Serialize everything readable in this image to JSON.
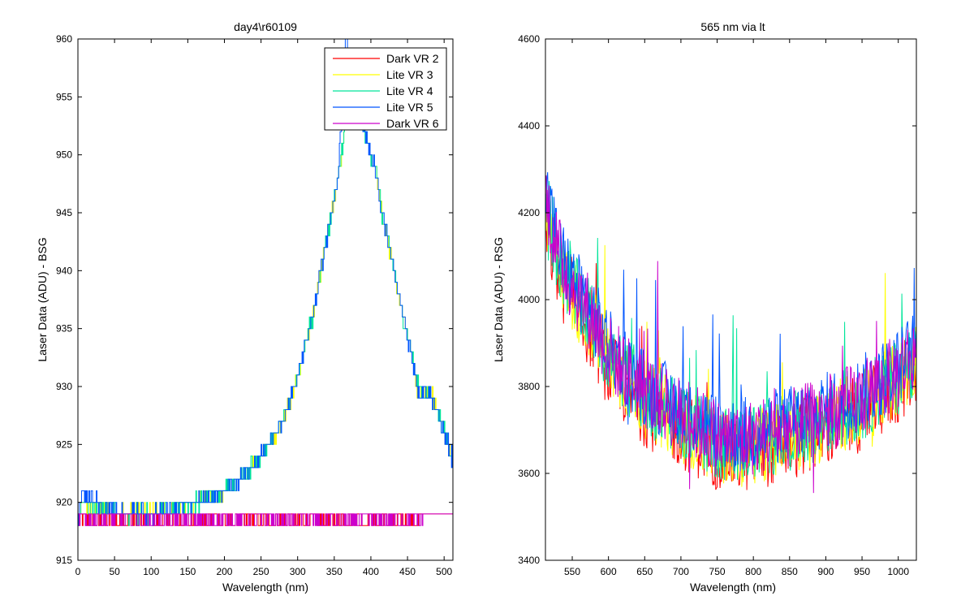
{
  "chart_data": [
    {
      "type": "line",
      "title": "day4\\r60109",
      "xlabel": "Wavelength (nm)",
      "ylabel": "Laser Data (ADU) - BSG",
      "xlim": [
        0,
        512
      ],
      "ylim": [
        915,
        960
      ],
      "xticks": [
        0,
        50,
        100,
        150,
        200,
        250,
        300,
        350,
        400,
        450,
        500
      ],
      "yticks": [
        915,
        920,
        925,
        930,
        935,
        940,
        945,
        950,
        955,
        960
      ],
      "legend_position": "top-right",
      "grid": false,
      "series": [
        {
          "name": "Dark VR 2",
          "color": "#ff0000",
          "shape": "baseline",
          "x": [
            0,
            5,
            20,
            100,
            200,
            300,
            400,
            450,
            470,
            512
          ],
          "y": [
            918.5,
            918.5,
            918.5,
            918.5,
            918.5,
            918.5,
            918.5,
            918.5,
            919,
            919
          ]
        },
        {
          "name": "Lite VR 3",
          "color": "#ffff00",
          "shape": "peak",
          "x": [
            0,
            5,
            50,
            100,
            130,
            160,
            190,
            220,
            250,
            280,
            300,
            320,
            340,
            355,
            365,
            375,
            385,
            395,
            405,
            415,
            425,
            440,
            455,
            463,
            485,
            500,
            510
          ],
          "y": [
            918.5,
            920,
            919,
            919,
            919.5,
            920,
            920.5,
            922,
            924,
            927,
            931,
            936,
            943,
            948,
            953,
            955,
            954,
            951,
            949,
            945,
            942,
            937,
            933,
            930,
            929,
            926,
            924
          ]
        },
        {
          "name": "Lite VR 4",
          "color": "#00e59a",
          "shape": "peak",
          "x": [
            0,
            5,
            50,
            100,
            130,
            160,
            190,
            220,
            250,
            280,
            300,
            320,
            340,
            355,
            365,
            375,
            385,
            395,
            405,
            415,
            425,
            440,
            455,
            463,
            485,
            500,
            510
          ],
          "y": [
            918.5,
            920,
            919,
            919,
            919.5,
            920,
            920.5,
            922,
            924,
            927,
            931,
            936,
            943,
            948,
            953,
            955,
            954,
            951,
            949,
            945,
            942,
            937,
            933,
            930,
            929,
            926,
            924
          ]
        },
        {
          "name": "Lite VR 5",
          "color": "#0055ff",
          "shape": "peak",
          "x": [
            0,
            5,
            50,
            100,
            130,
            160,
            190,
            220,
            250,
            280,
            300,
            320,
            340,
            355,
            365,
            375,
            385,
            395,
            405,
            415,
            425,
            440,
            455,
            463,
            485,
            500,
            510
          ],
          "y": [
            918.5,
            921,
            919,
            919,
            919.5,
            920,
            920.5,
            922,
            924,
            927,
            931,
            936,
            943,
            948,
            960,
            955,
            954,
            951,
            949,
            945,
            942,
            937,
            933,
            930,
            929,
            926,
            924
          ]
        },
        {
          "name": "Dark VR 6",
          "color": "#cc00cc",
          "shape": "baseline",
          "x": [
            0,
            5,
            20,
            100,
            200,
            300,
            400,
            450,
            470,
            512
          ],
          "y": [
            917,
            918.5,
            918.5,
            918.5,
            918.5,
            918.5,
            918.5,
            918.5,
            919,
            919
          ]
        }
      ]
    },
    {
      "type": "line",
      "title": "565 nm via lt",
      "xlabel": "Wavelength (nm)",
      "ylabel": "Laser Data (ADU) - RSG",
      "xlim": [
        513,
        1025
      ],
      "ylim": [
        3400,
        4600
      ],
      "xticks": [
        550,
        600,
        650,
        700,
        750,
        800,
        850,
        900,
        950,
        1000
      ],
      "yticks": [
        3400,
        3600,
        3800,
        4000,
        4200,
        4400,
        4600
      ],
      "grid": false,
      "series": [
        {
          "color": "#ff0000",
          "x": [
            513,
            530,
            550,
            575,
            600,
            650,
            700,
            750,
            780,
            800,
            850,
            900,
            950,
            1000,
            1025
          ],
          "y": [
            4180,
            4060,
            3990,
            3930,
            3840,
            3750,
            3700,
            3650,
            3640,
            3650,
            3670,
            3700,
            3740,
            3800,
            3850
          ]
        },
        {
          "color": "#ffff00",
          "x": [
            513,
            530,
            550,
            575,
            600,
            650,
            700,
            750,
            780,
            800,
            850,
            900,
            950,
            1000,
            1025
          ],
          "y": [
            4220,
            4090,
            4010,
            3950,
            3860,
            3770,
            3715,
            3665,
            3655,
            3665,
            3685,
            3715,
            3755,
            3815,
            3865
          ]
        },
        {
          "color": "#00e59a",
          "x": [
            513,
            530,
            550,
            575,
            600,
            650,
            700,
            750,
            780,
            800,
            850,
            900,
            950,
            1000,
            1025
          ],
          "y": [
            4230,
            4100,
            4020,
            3960,
            3870,
            3780,
            3725,
            3675,
            3665,
            3675,
            3695,
            3725,
            3765,
            3825,
            3875
          ]
        },
        {
          "color": "#0055ff",
          "x": [
            513,
            530,
            550,
            575,
            600,
            650,
            700,
            750,
            780,
            800,
            850,
            900,
            950,
            1000,
            1025
          ],
          "y": [
            4260,
            4120,
            4040,
            3980,
            3890,
            3800,
            3745,
            3695,
            3685,
            3695,
            3715,
            3745,
            3785,
            3845,
            3895
          ]
        },
        {
          "color": "#cc00cc",
          "x": [
            513,
            530,
            550,
            575,
            600,
            650,
            700,
            750,
            780,
            800,
            850,
            900,
            950,
            1000,
            1025
          ],
          "y": [
            4240,
            4110,
            4030,
            3970,
            3880,
            3790,
            3735,
            3685,
            3675,
            3685,
            3705,
            3735,
            3775,
            3835,
            3885
          ]
        }
      ]
    }
  ]
}
